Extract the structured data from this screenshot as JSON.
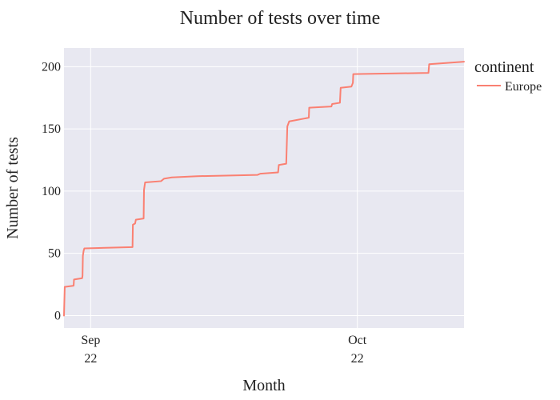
{
  "chart_data": {
    "type": "line",
    "title": "Number of tests over time",
    "xlabel": "Month",
    "ylabel": "Number of tests",
    "legend": {
      "title": "continent",
      "position": "right"
    },
    "grid": true,
    "xlim": [
      "2022-08-29",
      "2022-10-13"
    ],
    "ylim": [
      -10,
      215
    ],
    "x_ticks": [
      {
        "date": "2022-09-01",
        "label_line1": "Sep",
        "label_line2": "22"
      },
      {
        "date": "2022-10-01",
        "label_line1": "Oct",
        "label_line2": "22"
      }
    ],
    "y_ticks": [
      0,
      50,
      100,
      150,
      200
    ],
    "series": [
      {
        "name": "Europe",
        "color": "#fa8072",
        "points": [
          [
            "2022-08-29 00:00",
            0
          ],
          [
            "2022-08-29 02:00",
            23
          ],
          [
            "2022-08-30 02:00",
            24
          ],
          [
            "2022-08-30 03:00",
            29
          ],
          [
            "2022-08-31 01:00",
            30
          ],
          [
            "2022-08-31 02:00",
            32
          ],
          [
            "2022-08-31 03:00",
            48
          ],
          [
            "2022-08-31 05:00",
            52
          ],
          [
            "2022-08-31 07:00",
            54
          ],
          [
            "2022-09-05 17:00",
            55
          ],
          [
            "2022-09-05 18:00",
            73
          ],
          [
            "2022-09-06 00:00",
            74
          ],
          [
            "2022-09-06 02:00",
            77
          ],
          [
            "2022-09-06 23:00",
            78
          ],
          [
            "2022-09-07 00:00",
            101
          ],
          [
            "2022-09-07 03:00",
            107
          ],
          [
            "2022-09-08 22:00",
            108
          ],
          [
            "2022-09-09 06:00",
            110
          ],
          [
            "2022-09-10 03:00",
            111
          ],
          [
            "2022-09-13 00:00",
            112
          ],
          [
            "2022-09-19 18:00",
            113
          ],
          [
            "2022-09-20 02:00",
            114
          ],
          [
            "2022-09-22 02:00",
            115
          ],
          [
            "2022-09-22 04:00",
            121
          ],
          [
            "2022-09-23 00:00",
            122
          ],
          [
            "2022-09-23 03:00",
            152
          ],
          [
            "2022-09-23 08:00",
            156
          ],
          [
            "2022-09-25 13:00",
            159
          ],
          [
            "2022-09-25 14:00",
            167
          ],
          [
            "2022-09-28 02:00",
            168
          ],
          [
            "2022-09-28 04:00",
            170
          ],
          [
            "2022-09-29 01:00",
            171
          ],
          [
            "2022-09-29 03:00",
            183
          ],
          [
            "2022-09-30 08:00",
            184
          ],
          [
            "2022-09-30 12:00",
            187
          ],
          [
            "2022-09-30 13:00",
            194
          ],
          [
            "2022-10-09 00:00",
            195
          ],
          [
            "2022-10-09 02:00",
            202
          ],
          [
            "2022-10-13 00:00",
            204
          ]
        ]
      }
    ]
  }
}
